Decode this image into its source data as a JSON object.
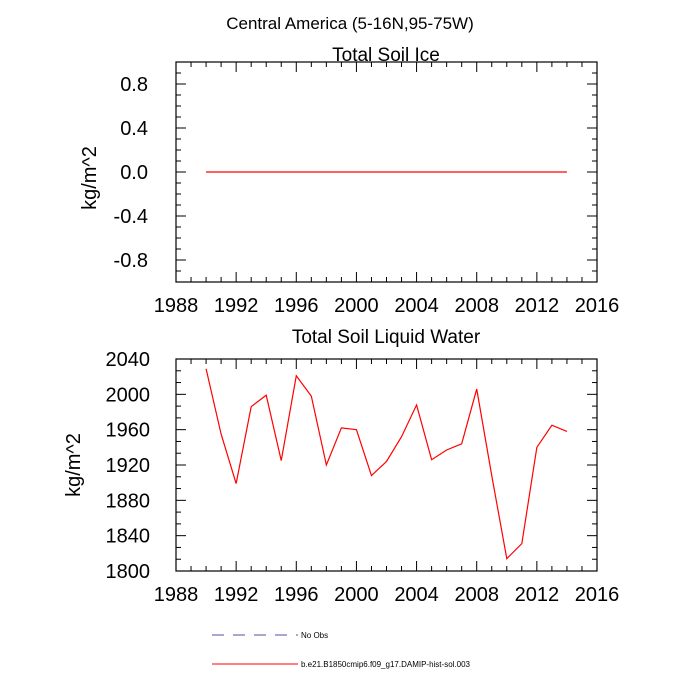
{
  "figure_title": "Central America (5-16N,95-75W)",
  "chart_data": [
    {
      "type": "line",
      "title": "Total Soil Ice",
      "xlabel": "",
      "ylabel": "kg/m^2",
      "xlim": [
        1988,
        2016
      ],
      "ylim": [
        -1.0,
        1.0
      ],
      "xticks": [
        "1988",
        "1992",
        "1996",
        "2000",
        "2004",
        "2008",
        "2012",
        "2016"
      ],
      "yticks": [
        "0.8",
        "0.4",
        "0.0",
        "-0.4",
        "-0.8"
      ],
      "grid": false,
      "series": [
        {
          "color": "#ff0000",
          "x": [
            1990,
            1991,
            1992,
            1993,
            1994,
            1995,
            1996,
            1997,
            1998,
            1999,
            2000,
            2001,
            2002,
            2003,
            2004,
            2005,
            2006,
            2007,
            2008,
            2009,
            2010,
            2011,
            2012,
            2013,
            2014
          ],
          "values": [
            0,
            0,
            0,
            0,
            0,
            0,
            0,
            0,
            0,
            0,
            0,
            0,
            0,
            0,
            0,
            0,
            0,
            0,
            0,
            0,
            0,
            0,
            0,
            0,
            0
          ]
        }
      ]
    },
    {
      "type": "line",
      "title": "Total Soil Liquid Water",
      "xlabel": "",
      "ylabel": "kg/m^2",
      "xlim": [
        1988,
        2016
      ],
      "ylim": [
        1800,
        2040
      ],
      "xticks": [
        "1988",
        "1992",
        "1996",
        "2000",
        "2004",
        "2008",
        "2012",
        "2016"
      ],
      "yticks": [
        "2040",
        "2000",
        "1960",
        "1920",
        "1880",
        "1840",
        "1800"
      ],
      "grid": false,
      "series": [
        {
          "color": "#ff0000",
          "x": [
            1990,
            1991,
            1992,
            1993,
            1994,
            1995,
            1996,
            1997,
            1998,
            1999,
            2000,
            2001,
            2002,
            2003,
            2004,
            2005,
            2006,
            2007,
            2008,
            2009,
            2010,
            2011,
            2012,
            2013,
            2014
          ],
          "values": [
            2029,
            1955,
            1899,
            1986,
            1999,
            1925,
            2021,
            1998,
            1920,
            1962,
            1960,
            1908,
            1924,
            1952,
            1988,
            1926,
            1937,
            1944,
            2006,
            1908,
            1814,
            1831,
            1940,
            1965,
            1958
          ]
        }
      ]
    }
  ],
  "legend": [
    {
      "label": "No Obs",
      "color": "#4f4fa0",
      "style": "dashed"
    },
    {
      "label": "b.e21.B1850cmip6.f09_g17.DAMIP-hist-sol.003",
      "color": "#ff0000",
      "style": "solid"
    }
  ]
}
